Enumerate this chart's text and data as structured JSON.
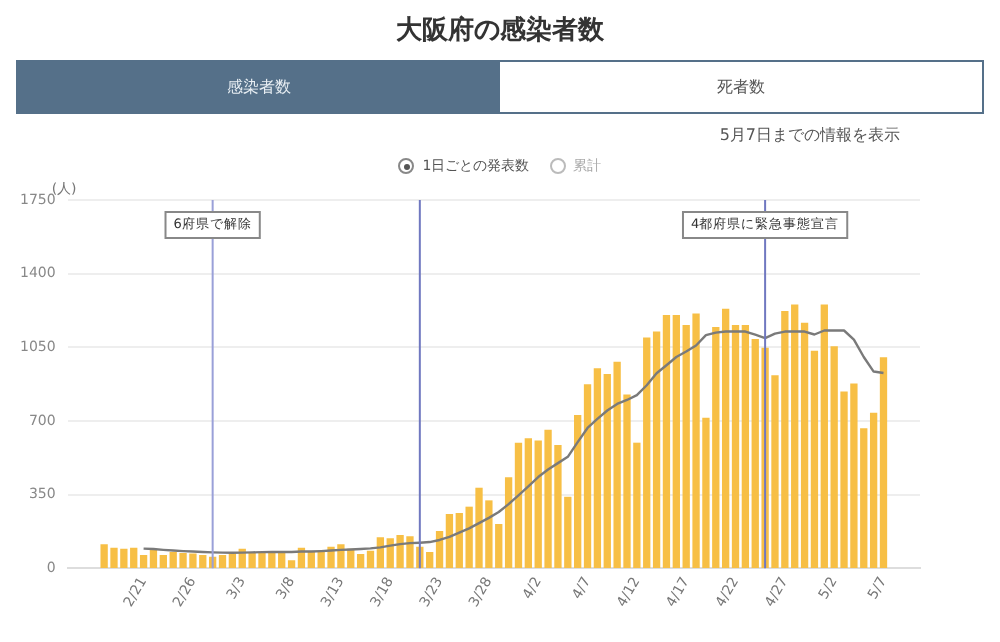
{
  "chart_data": {
    "type": "bar",
    "title": "大阪府の感染者数",
    "ylabel": "(人)",
    "annotations": [
      "感染者数",
      "死者数",
      "5月7日までの情報を表示",
      "1日ごとの発表数",
      "累計"
    ],
    "x": [
      "--02-17",
      "--02-18",
      "--02-19",
      "--02-20",
      "--02-21",
      "--02-22",
      "--02-23",
      "--02-24",
      "--02-25",
      "--02-26",
      "--02-27",
      "--02-28",
      "--03-01",
      "--03-02",
      "--03-03",
      "--03-04",
      "--03-05",
      "--03-06",
      "--03-07",
      "--03-08",
      "--03-09",
      "--03-10",
      "--03-11",
      "--03-12",
      "--03-13",
      "--03-14",
      "--03-15",
      "--03-16",
      "--03-17",
      "--03-18",
      "--03-19",
      "--03-20",
      "--03-21",
      "--03-22",
      "--03-23",
      "--03-24",
      "--03-25",
      "--03-26",
      "--03-27",
      "--03-28",
      "--03-29",
      "--03-30",
      "--03-31",
      "--04-01",
      "--04-02",
      "--04-03",
      "--04-04",
      "--04-05",
      "--04-06",
      "--04-07",
      "--04-08",
      "--04-09",
      "--04-10",
      "--04-11",
      "--04-12",
      "--04-13",
      "--04-14",
      "--04-15",
      "--04-16",
      "--04-17",
      "--04-18",
      "--04-19",
      "--04-20",
      "--04-21",
      "--04-22",
      "--04-23",
      "--04-24",
      "--04-25",
      "--04-26",
      "--04-27",
      "--04-28",
      "--04-29",
      "--04-30",
      "--05-01",
      "--05-02",
      "--05-03",
      "--05-04",
      "--05-05",
      "--05-06",
      "--05-07"
    ],
    "series": [
      {
        "color": "#f7bf45",
        "values": [
          112,
          95,
          90,
          95,
          60,
          90,
          60,
          75,
          70,
          68,
          60,
          52,
          60,
          68,
          90,
          70,
          70,
          75,
          70,
          35,
          95,
          75,
          75,
          100,
          112,
          90,
          65,
          80,
          145,
          140,
          155,
          150,
          100,
          75,
          175,
          255,
          260,
          290,
          380,
          320,
          208,
          430,
          594,
          615,
          604,
          656,
          583,
          337,
          726,
          872,
          948,
          920,
          979,
          823,
          594,
          1094,
          1122,
          1201,
          1200,
          1153,
          1208,
          712,
          1143,
          1230,
          1153,
          1153,
          1087,
          1045,
          914,
          1219,
          1250,
          1164,
          1031,
          1250,
          1052,
          837,
          875,
          663,
          736,
          1000
        ]
      },
      {
        "type": "line",
        "color": "#7a7a7a",
        "values": [
          null,
          null,
          null,
          null,
          94,
          92,
          88,
          85,
          82,
          80,
          78,
          76,
          75,
          74,
          75,
          76,
          77,
          78,
          78,
          78,
          80,
          80,
          82,
          85,
          88,
          90,
          92,
          95,
          100,
          108,
          115,
          120,
          122,
          125,
          135,
          150,
          170,
          190,
          215,
          240,
          268,
          305,
          347,
          390,
          434,
          470,
          500,
          530,
          600,
          667,
          710,
          750,
          781,
          800,
          823,
          870,
          927,
          965,
          1004,
          1030,
          1059,
          1108,
          1120,
          1125,
          1125,
          1125,
          1110,
          1094,
          1115,
          1125,
          1125,
          1125,
          1111,
          1130,
          1130,
          1130,
          1087,
          1004,
          935,
          928
        ]
      }
    ],
    "xlim": [
      "--02-16",
      "--05-08"
    ],
    "xticks": [
      {
        "value": "--02-21",
        "label": "2/21"
      },
      {
        "value": "--02-26",
        "label": "2/26"
      },
      {
        "value": "--03-03",
        "label": "3/3"
      },
      {
        "value": "--03-08",
        "label": "3/8"
      },
      {
        "value": "--03-13",
        "label": "3/13"
      },
      {
        "value": "--03-18",
        "label": "3/18"
      },
      {
        "value": "--03-23",
        "label": "3/23"
      },
      {
        "value": "--03-28",
        "label": "3/28"
      },
      {
        "value": "--04-02",
        "label": "4/2"
      },
      {
        "value": "--04-07",
        "label": "4/7"
      },
      {
        "value": "--04-12",
        "label": "4/12"
      },
      {
        "value": "--04-17",
        "label": "4/17"
      },
      {
        "value": "--04-22",
        "label": "4/22"
      },
      {
        "value": "--04-27",
        "label": "4/27"
      },
      {
        "value": "--05-02",
        "label": "5/2"
      },
      {
        "value": "--05-07",
        "label": "5/7"
      }
    ],
    "ylim": [
      0,
      1750
    ],
    "yticks": [
      0,
      350,
      700,
      1050,
      1400,
      1750
    ],
    "ref_lines": [
      {
        "axis": "x",
        "value": "--02-28",
        "label": "6府県で解除",
        "color": "#9aa0d8"
      },
      {
        "axis": "x",
        "value": "--03-21",
        "color": "#7078c0"
      },
      {
        "axis": "x",
        "value": "--04-25",
        "label": "4都府県に緊急事態宣言",
        "color": "#7078c0"
      }
    ],
    "grid": "y",
    "legend": false,
    "marker": "none",
    "line_style": "solid"
  }
}
